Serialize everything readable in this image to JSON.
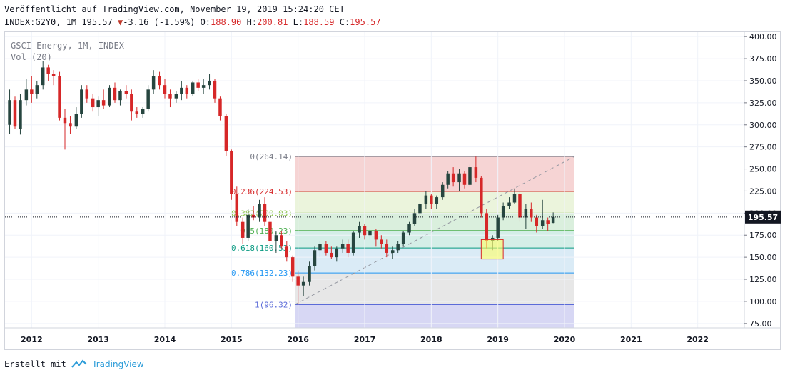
{
  "header": {
    "published": "Veröffentlicht auf TradingView.com, November 19, 2019 15:24:20 CET",
    "symbol_prefix": "INDEX:G2Y0, 1M 195.57",
    "change_arrow": "▼",
    "change": "-3.16 (-1.59%)",
    "o_label": "O:",
    "o_value": "188.90",
    "h_label": "H:",
    "h_value": "200.81",
    "l_label": "L:",
    "l_value": "188.59",
    "c_label": "C:",
    "c_value": "195.57"
  },
  "legend": {
    "title": "GSCI Energy, 1M, INDEX",
    "vol": "Vol (20)"
  },
  "footer": {
    "created_with": "Erstellt mit",
    "brand": "TradingView"
  },
  "colors": {
    "up": "#26453f",
    "down": "#d62728",
    "grid": "#f0f3fa",
    "axis_text": "#131722",
    "price_label_bg": "#131722"
  },
  "chart_data": {
    "type": "candlestick",
    "title": "GSCI Energy, 1M, INDEX",
    "y_axis": {
      "ticks": [
        "75.00",
        "100.00",
        "125.00",
        "150.00",
        "175.00",
        "200.00",
        "225.00",
        "250.00",
        "275.00",
        "300.00",
        "325.00",
        "350.00",
        "375.00",
        "400.00"
      ],
      "ylim": [
        70,
        405
      ]
    },
    "x_axis": {
      "ticks": [
        "2012",
        "2013",
        "2014",
        "2015",
        "2016",
        "2017",
        "2018",
        "2019",
        "2020",
        "2021",
        "2022"
      ],
      "xlim": [
        2011.6,
        2022.7
      ]
    },
    "current_price": "195.57",
    "fibonacci": {
      "levels": [
        {
          "label": "0(264.14)",
          "price": 264.14,
          "color": "#787b86",
          "fill": "#f4cccc"
        },
        {
          "label": "0.236(224.53)",
          "price": 224.53,
          "color": "#d62728",
          "fill": "#e8f2d6"
        },
        {
          "label": "0.382(200.03)",
          "price": 200.03,
          "color": "#8bc34a",
          "fill": "#d3ecd7"
        },
        {
          "label": "0.5(180.23)",
          "price": 180.23,
          "color": "#4caf50",
          "fill": "#cdebe3"
        },
        {
          "label": "0.618(160.53)",
          "price": 160.53,
          "color": "#089981",
          "fill": "#d4e8f5"
        },
        {
          "label": "0.786(132.23)",
          "price": 132.23,
          "color": "#2196f3",
          "fill": "#e3e3e3"
        },
        {
          "label": "1(96.32)",
          "price": 96.32,
          "color": "#5b6bd8",
          "fill": "#d0d0f2"
        }
      ],
      "start_date": 2015.95,
      "end_date": 2020.15,
      "trend_from": [
        2015.95,
        96.32
      ],
      "trend_to": [
        2020.15,
        264.14
      ]
    },
    "highlight_box": {
      "x0": 2018.75,
      "x1": 2019.08,
      "y0": 148,
      "y1": 170
    },
    "candles": [
      {
        "t": 2011.67,
        "o": 300,
        "h": 340,
        "l": 290,
        "c": 328
      },
      {
        "t": 2011.75,
        "o": 328,
        "h": 332,
        "l": 295,
        "c": 298
      },
      {
        "t": 2011.83,
        "o": 295,
        "h": 335,
        "l": 289,
        "c": 328
      },
      {
        "t": 2011.92,
        "o": 328,
        "h": 352,
        "l": 322,
        "c": 340
      },
      {
        "t": 2012.0,
        "o": 340,
        "h": 355,
        "l": 325,
        "c": 335
      },
      {
        "t": 2012.08,
        "o": 335,
        "h": 350,
        "l": 330,
        "c": 345
      },
      {
        "t": 2012.17,
        "o": 345,
        "h": 372,
        "l": 340,
        "c": 365
      },
      {
        "t": 2012.25,
        "o": 365,
        "h": 368,
        "l": 350,
        "c": 358
      },
      {
        "t": 2012.33,
        "o": 358,
        "h": 362,
        "l": 345,
        "c": 355
      },
      {
        "t": 2012.42,
        "o": 355,
        "h": 360,
        "l": 305,
        "c": 308
      },
      {
        "t": 2012.5,
        "o": 308,
        "h": 318,
        "l": 272,
        "c": 302
      },
      {
        "t": 2012.58,
        "o": 302,
        "h": 310,
        "l": 290,
        "c": 298
      },
      {
        "t": 2012.67,
        "o": 298,
        "h": 320,
        "l": 295,
        "c": 312
      },
      {
        "t": 2012.75,
        "o": 312,
        "h": 345,
        "l": 308,
        "c": 340
      },
      {
        "t": 2012.83,
        "o": 340,
        "h": 345,
        "l": 325,
        "c": 330
      },
      {
        "t": 2012.92,
        "o": 330,
        "h": 335,
        "l": 315,
        "c": 320
      },
      {
        "t": 2013.0,
        "o": 320,
        "h": 332,
        "l": 310,
        "c": 328
      },
      {
        "t": 2013.08,
        "o": 328,
        "h": 340,
        "l": 318,
        "c": 322
      },
      {
        "t": 2013.17,
        "o": 322,
        "h": 345,
        "l": 320,
        "c": 342
      },
      {
        "t": 2013.25,
        "o": 342,
        "h": 348,
        "l": 325,
        "c": 328
      },
      {
        "t": 2013.33,
        "o": 328,
        "h": 340,
        "l": 322,
        "c": 338
      },
      {
        "t": 2013.42,
        "o": 338,
        "h": 345,
        "l": 330,
        "c": 335
      },
      {
        "t": 2013.5,
        "o": 335,
        "h": 340,
        "l": 305,
        "c": 315
      },
      {
        "t": 2013.58,
        "o": 315,
        "h": 320,
        "l": 308,
        "c": 312
      },
      {
        "t": 2013.67,
        "o": 312,
        "h": 320,
        "l": 308,
        "c": 318
      },
      {
        "t": 2013.75,
        "o": 318,
        "h": 345,
        "l": 315,
        "c": 340
      },
      {
        "t": 2013.83,
        "o": 340,
        "h": 362,
        "l": 335,
        "c": 355
      },
      {
        "t": 2013.92,
        "o": 355,
        "h": 360,
        "l": 340,
        "c": 345
      },
      {
        "t": 2014.0,
        "o": 345,
        "h": 352,
        "l": 330,
        "c": 335
      },
      {
        "t": 2014.08,
        "o": 335,
        "h": 340,
        "l": 320,
        "c": 330
      },
      {
        "t": 2014.17,
        "o": 330,
        "h": 338,
        "l": 325,
        "c": 335
      },
      {
        "t": 2014.25,
        "o": 335,
        "h": 350,
        "l": 328,
        "c": 342
      },
      {
        "t": 2014.33,
        "o": 342,
        "h": 345,
        "l": 330,
        "c": 335
      },
      {
        "t": 2014.42,
        "o": 335,
        "h": 350,
        "l": 333,
        "c": 348
      },
      {
        "t": 2014.5,
        "o": 348,
        "h": 352,
        "l": 338,
        "c": 342
      },
      {
        "t": 2014.58,
        "o": 342,
        "h": 352,
        "l": 335,
        "c": 345
      },
      {
        "t": 2014.67,
        "o": 345,
        "h": 358,
        "l": 340,
        "c": 350
      },
      {
        "t": 2014.75,
        "o": 350,
        "h": 352,
        "l": 325,
        "c": 330
      },
      {
        "t": 2014.83,
        "o": 330,
        "h": 332,
        "l": 305,
        "c": 310
      },
      {
        "t": 2014.92,
        "o": 310,
        "h": 312,
        "l": 265,
        "c": 270
      },
      {
        "t": 2015.0,
        "o": 270,
        "h": 272,
        "l": 215,
        "c": 222
      },
      {
        "t": 2015.08,
        "o": 222,
        "h": 230,
        "l": 185,
        "c": 190
      },
      {
        "t": 2015.17,
        "o": 190,
        "h": 195,
        "l": 165,
        "c": 172
      },
      {
        "t": 2015.25,
        "o": 172,
        "h": 205,
        "l": 168,
        "c": 198
      },
      {
        "t": 2015.33,
        "o": 198,
        "h": 208,
        "l": 192,
        "c": 195
      },
      {
        "t": 2015.42,
        "o": 195,
        "h": 215,
        "l": 190,
        "c": 210
      },
      {
        "t": 2015.5,
        "o": 210,
        "h": 218,
        "l": 185,
        "c": 190
      },
      {
        "t": 2015.58,
        "o": 190,
        "h": 195,
        "l": 160,
        "c": 168
      },
      {
        "t": 2015.67,
        "o": 168,
        "h": 180,
        "l": 155,
        "c": 175
      },
      {
        "t": 2015.75,
        "o": 175,
        "h": 180,
        "l": 160,
        "c": 162
      },
      {
        "t": 2015.83,
        "o": 162,
        "h": 168,
        "l": 145,
        "c": 150
      },
      {
        "t": 2015.92,
        "o": 150,
        "h": 152,
        "l": 122,
        "c": 128
      },
      {
        "t": 2016.0,
        "o": 128,
        "h": 135,
        "l": 96,
        "c": 118
      },
      {
        "t": 2016.08,
        "o": 118,
        "h": 128,
        "l": 106,
        "c": 122
      },
      {
        "t": 2016.17,
        "o": 122,
        "h": 145,
        "l": 118,
        "c": 140
      },
      {
        "t": 2016.25,
        "o": 140,
        "h": 162,
        "l": 135,
        "c": 158
      },
      {
        "t": 2016.33,
        "o": 158,
        "h": 168,
        "l": 150,
        "c": 165
      },
      {
        "t": 2016.42,
        "o": 165,
        "h": 168,
        "l": 152,
        "c": 155
      },
      {
        "t": 2016.5,
        "o": 155,
        "h": 162,
        "l": 148,
        "c": 150
      },
      {
        "t": 2016.58,
        "o": 150,
        "h": 162,
        "l": 145,
        "c": 160
      },
      {
        "t": 2016.67,
        "o": 160,
        "h": 170,
        "l": 155,
        "c": 165
      },
      {
        "t": 2016.75,
        "o": 165,
        "h": 170,
        "l": 150,
        "c": 155
      },
      {
        "t": 2016.83,
        "o": 155,
        "h": 180,
        "l": 152,
        "c": 178
      },
      {
        "t": 2016.92,
        "o": 178,
        "h": 190,
        "l": 172,
        "c": 185
      },
      {
        "t": 2017.0,
        "o": 185,
        "h": 188,
        "l": 170,
        "c": 175
      },
      {
        "t": 2017.08,
        "o": 175,
        "h": 182,
        "l": 170,
        "c": 180
      },
      {
        "t": 2017.17,
        "o": 180,
        "h": 182,
        "l": 162,
        "c": 170
      },
      {
        "t": 2017.25,
        "o": 170,
        "h": 175,
        "l": 160,
        "c": 165
      },
      {
        "t": 2017.33,
        "o": 165,
        "h": 170,
        "l": 150,
        "c": 155
      },
      {
        "t": 2017.42,
        "o": 155,
        "h": 162,
        "l": 148,
        "c": 158
      },
      {
        "t": 2017.5,
        "o": 158,
        "h": 168,
        "l": 155,
        "c": 165
      },
      {
        "t": 2017.58,
        "o": 165,
        "h": 180,
        "l": 162,
        "c": 178
      },
      {
        "t": 2017.67,
        "o": 178,
        "h": 190,
        "l": 175,
        "c": 188
      },
      {
        "t": 2017.75,
        "o": 188,
        "h": 205,
        "l": 185,
        "c": 200
      },
      {
        "t": 2017.83,
        "o": 200,
        "h": 212,
        "l": 195,
        "c": 210
      },
      {
        "t": 2017.92,
        "o": 210,
        "h": 225,
        "l": 205,
        "c": 220
      },
      {
        "t": 2018.0,
        "o": 220,
        "h": 222,
        "l": 205,
        "c": 210
      },
      {
        "t": 2018.08,
        "o": 210,
        "h": 220,
        "l": 205,
        "c": 218
      },
      {
        "t": 2018.17,
        "o": 218,
        "h": 235,
        "l": 215,
        "c": 232
      },
      {
        "t": 2018.25,
        "o": 232,
        "h": 248,
        "l": 228,
        "c": 245
      },
      {
        "t": 2018.33,
        "o": 245,
        "h": 252,
        "l": 230,
        "c": 235
      },
      {
        "t": 2018.42,
        "o": 235,
        "h": 250,
        "l": 225,
        "c": 245
      },
      {
        "t": 2018.5,
        "o": 245,
        "h": 248,
        "l": 228,
        "c": 232
      },
      {
        "t": 2018.58,
        "o": 232,
        "h": 255,
        "l": 230,
        "c": 252
      },
      {
        "t": 2018.67,
        "o": 252,
        "h": 264,
        "l": 235,
        "c": 240
      },
      {
        "t": 2018.75,
        "o": 240,
        "h": 242,
        "l": 195,
        "c": 200
      },
      {
        "t": 2018.83,
        "o": 200,
        "h": 205,
        "l": 160,
        "c": 168
      },
      {
        "t": 2018.92,
        "o": 168,
        "h": 175,
        "l": 158,
        "c": 172
      },
      {
        "t": 2019.0,
        "o": 172,
        "h": 198,
        "l": 168,
        "c": 195
      },
      {
        "t": 2019.08,
        "o": 195,
        "h": 212,
        "l": 192,
        "c": 208
      },
      {
        "t": 2019.17,
        "o": 208,
        "h": 218,
        "l": 205,
        "c": 212
      },
      {
        "t": 2019.25,
        "o": 212,
        "h": 228,
        "l": 210,
        "c": 222
      },
      {
        "t": 2019.33,
        "o": 222,
        "h": 225,
        "l": 190,
        "c": 195
      },
      {
        "t": 2019.42,
        "o": 195,
        "h": 210,
        "l": 182,
        "c": 205
      },
      {
        "t": 2019.5,
        "o": 205,
        "h": 212,
        "l": 190,
        "c": 195
      },
      {
        "t": 2019.58,
        "o": 195,
        "h": 198,
        "l": 178,
        "c": 185
      },
      {
        "t": 2019.67,
        "o": 185,
        "h": 215,
        "l": 182,
        "c": 192
      },
      {
        "t": 2019.75,
        "o": 192,
        "h": 195,
        "l": 180,
        "c": 188
      },
      {
        "t": 2019.83,
        "o": 188.9,
        "h": 200.81,
        "l": 188.59,
        "c": 195.57
      }
    ]
  }
}
